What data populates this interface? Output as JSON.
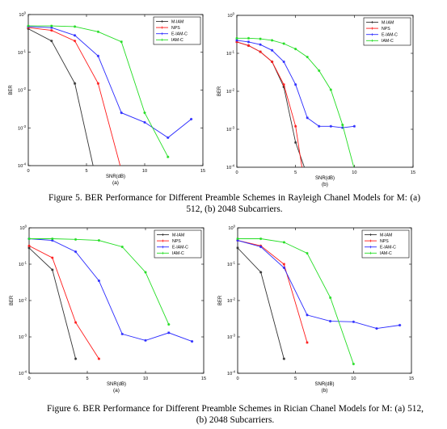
{
  "colors": {
    "M-IAM": "#333333",
    "NPS": "#ff1a1a",
    "E-IAM-C": "#2a2aff",
    "IAM-C": "#22dd22"
  },
  "figures": [
    {
      "caption": "Figure 5. BER Performance for Different Preamble Schemes in Rayleigh Chanel Models for M: (a) 512, (b) 2048 Subcarriers."
    },
    {
      "caption": "Figure 6. BER Performance for Different Preamble Schemes in Rician Chanel Models for M: (a) 512, (b) 2048 Subcarriers."
    }
  ],
  "chart_data": [
    {
      "type": "line",
      "panel_label": "(a)",
      "xlabel": "SNR(dB)",
      "ylabel": "BER",
      "xlim": [
        0,
        15
      ],
      "ylim": [
        0.0001,
        1
      ],
      "yscale": "log",
      "x_ticks": [
        "0",
        "5",
        "10",
        "15"
      ],
      "y_ticks": [
        "10-4",
        "10-3",
        "10-2",
        "10-1",
        "100"
      ],
      "grid": false,
      "legend_position": "top-right",
      "series": [
        {
          "name": "M-IAM",
          "x": [
            0,
            2,
            4,
            6
          ],
          "y": [
            0.42,
            0.2,
            0.015,
            2.5e-05
          ]
        },
        {
          "name": "NPS",
          "x": [
            0,
            2,
            4,
            6,
            8
          ],
          "y": [
            0.45,
            0.38,
            0.2,
            0.015,
            7.5e-05
          ]
        },
        {
          "name": "E-IAM-C",
          "x": [
            0,
            2,
            4,
            6,
            8,
            10,
            12,
            14
          ],
          "y": [
            0.48,
            0.45,
            0.28,
            0.08,
            0.0025,
            0.0014,
            0.00055,
            0.0017
          ]
        },
        {
          "name": "IAM-C",
          "x": [
            0,
            2,
            4,
            6,
            8,
            10,
            12
          ],
          "y": [
            0.5,
            0.5,
            0.48,
            0.35,
            0.19,
            0.0025,
            0.00017
          ]
        }
      ]
    },
    {
      "type": "line",
      "panel_label": "(b)",
      "xlabel": "SNR(dB)",
      "ylabel": "BER",
      "xlim": [
        0,
        15
      ],
      "ylim": [
        0.0001,
        1
      ],
      "yscale": "log",
      "x_ticks": [
        "0",
        "5",
        "10",
        "15"
      ],
      "y_ticks": [
        "10-4",
        "10-3",
        "10-2",
        "10-1",
        "100"
      ],
      "grid": false,
      "legend_position": "top-right",
      "series": [
        {
          "name": "M-IAM",
          "x": [
            0,
            1,
            2,
            3,
            4,
            5,
            6
          ],
          "y": [
            0.2,
            0.16,
            0.11,
            0.06,
            0.013,
            0.00045,
            6e-05
          ]
        },
        {
          "name": "NPS",
          "x": [
            0,
            1,
            2,
            3,
            4,
            5,
            6
          ],
          "y": [
            0.2,
            0.16,
            0.11,
            0.06,
            0.015,
            0.0012,
            1.2e-05
          ]
        },
        {
          "name": "E-IAM-C",
          "x": [
            0,
            1,
            2,
            3,
            4,
            5,
            6,
            7,
            8,
            9,
            10
          ],
          "y": [
            0.22,
            0.2,
            0.17,
            0.12,
            0.06,
            0.015,
            0.002,
            0.0012,
            0.0012,
            0.0011,
            0.0012
          ]
        },
        {
          "name": "IAM-C",
          "x": [
            0,
            1,
            2,
            3,
            4,
            5,
            6,
            7,
            8,
            9,
            10
          ],
          "y": [
            0.25,
            0.25,
            0.24,
            0.22,
            0.18,
            0.13,
            0.08,
            0.035,
            0.011,
            0.0013,
            9e-05
          ]
        }
      ]
    },
    {
      "type": "line",
      "panel_label": "(a)",
      "xlabel": "SNR(dB)",
      "ylabel": "BER",
      "xlim": [
        0,
        15
      ],
      "ylim": [
        0.0001,
        1
      ],
      "yscale": "log",
      "x_ticks": [
        "0",
        "5",
        "10",
        "15"
      ],
      "y_ticks": [
        "10-4",
        "10-3",
        "10-2",
        "10-1",
        "100"
      ],
      "grid": false,
      "legend_position": "top-right",
      "series": [
        {
          "name": "M-IAM",
          "x": [
            0,
            2,
            4
          ],
          "y": [
            0.28,
            0.07,
            0.00025
          ]
        },
        {
          "name": "NPS",
          "x": [
            0,
            2,
            4,
            6
          ],
          "y": [
            0.32,
            0.15,
            0.0025,
            0.00025
          ]
        },
        {
          "name": "E-IAM-C",
          "x": [
            0,
            2,
            4,
            6,
            8,
            10,
            12,
            14
          ],
          "y": [
            0.5,
            0.45,
            0.22,
            0.035,
            0.0012,
            0.0008,
            0.0013,
            0.00075
          ]
        },
        {
          "name": "IAM-C",
          "x": [
            0,
            2,
            4,
            6,
            8,
            10,
            12
          ],
          "y": [
            0.5,
            0.5,
            0.48,
            0.45,
            0.3,
            0.06,
            0.0022
          ]
        }
      ]
    },
    {
      "type": "line",
      "panel_label": "(b)",
      "xlabel": "SNR(dB)",
      "ylabel": "BER",
      "xlim": [
        0,
        15
      ],
      "ylim": [
        0.0001,
        1
      ],
      "yscale": "log",
      "x_ticks": [
        "0",
        "5",
        "10",
        "15"
      ],
      "y_ticks": [
        "10-4",
        "10-3",
        "10-2",
        "10-1",
        "100"
      ],
      "grid": false,
      "legend_position": "top-right",
      "series": [
        {
          "name": "M-IAM",
          "x": [
            0,
            2,
            4
          ],
          "y": [
            0.28,
            0.06,
            0.00025
          ]
        },
        {
          "name": "NPS",
          "x": [
            0,
            2,
            4,
            6
          ],
          "y": [
            0.45,
            0.32,
            0.1,
            0.0007
          ]
        },
        {
          "name": "E-IAM-C",
          "x": [
            0,
            2,
            4,
            6,
            8,
            10,
            12,
            14
          ],
          "y": [
            0.45,
            0.3,
            0.08,
            0.004,
            0.0027,
            0.0026,
            0.0017,
            0.0021
          ]
        },
        {
          "name": "IAM-C",
          "x": [
            0,
            2,
            4,
            6,
            8,
            10
          ],
          "y": [
            0.5,
            0.5,
            0.4,
            0.2,
            0.012,
            0.00018
          ]
        }
      ]
    }
  ]
}
